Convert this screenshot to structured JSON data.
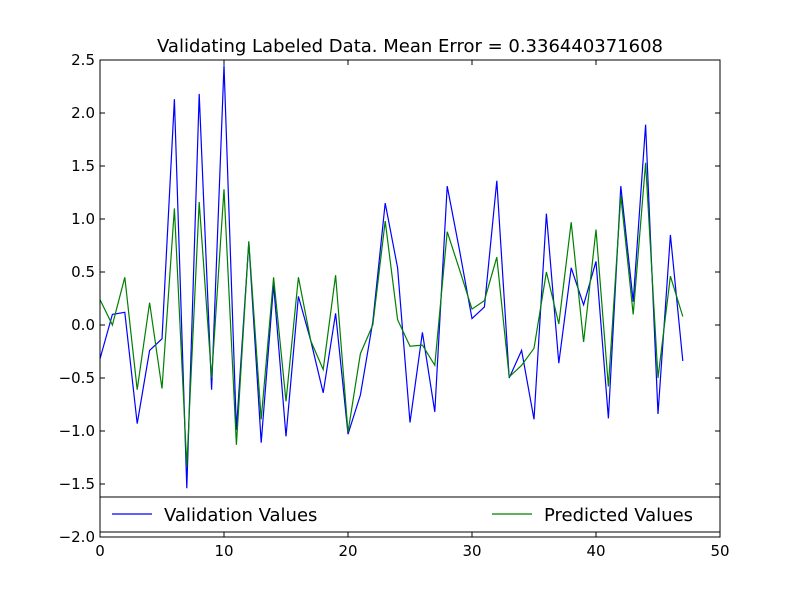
{
  "chart_data": {
    "type": "line",
    "title": "Validating Labeled Data. Mean Error = 0.336440371608",
    "xlabel": "",
    "ylabel": "",
    "xlim": [
      0,
      50
    ],
    "ylim": [
      -2.0,
      2.5
    ],
    "xticks": [
      0,
      10,
      20,
      30,
      40,
      50
    ],
    "xtick_labels": [
      "0",
      "10",
      "20",
      "30",
      "40",
      "50"
    ],
    "yticks": [
      -2.0,
      -1.5,
      -1.0,
      -0.5,
      0.0,
      0.5,
      1.0,
      1.5,
      2.0,
      2.5
    ],
    "ytick_labels": [
      "−2.0",
      "−1.5",
      "−1.0",
      "−0.5",
      "0.0",
      "0.5",
      "1.0",
      "1.5",
      "2.0",
      "2.5"
    ],
    "grid": false,
    "legend_position": "bottom, two columns",
    "series": [
      {
        "name": "Validation Values",
        "color": "#0000ff",
        "x": [
          0,
          1,
          2,
          3,
          4,
          5,
          6,
          7,
          8,
          9,
          10,
          11,
          12,
          13,
          14,
          15,
          16,
          17,
          18,
          19,
          20,
          21,
          22,
          23,
          24,
          25,
          26,
          27,
          28,
          29,
          30,
          31,
          32,
          33,
          34,
          35,
          36,
          37,
          38,
          39,
          40,
          41,
          42,
          43,
          44,
          45,
          46,
          47
        ],
        "values": [
          -0.32,
          0.1,
          0.12,
          -0.93,
          -0.24,
          -0.13,
          2.13,
          -1.54,
          2.18,
          -0.61,
          2.45,
          -0.99,
          0.78,
          -1.11,
          0.38,
          -1.05,
          0.27,
          -0.15,
          -0.64,
          0.11,
          -1.03,
          -0.66,
          0.03,
          1.15,
          0.54,
          -0.92,
          -0.07,
          -0.82,
          1.31,
          0.7,
          0.06,
          0.17,
          1.36,
          -0.5,
          -0.24,
          -0.89,
          1.05,
          -0.36,
          0.54,
          0.19,
          0.6,
          -0.88,
          1.31,
          0.22,
          1.89,
          -0.84,
          0.85,
          -0.34
        ]
      },
      {
        "name": "Predicted Values",
        "color": "#008000",
        "x": [
          0,
          1,
          2,
          3,
          4,
          5,
          6,
          7,
          8,
          9,
          10,
          11,
          12,
          13,
          14,
          15,
          16,
          17,
          18,
          19,
          20,
          21,
          22,
          23,
          24,
          25,
          26,
          27,
          28,
          29,
          30,
          31,
          32,
          33,
          34,
          35,
          36,
          37,
          38,
          39,
          40,
          41,
          42,
          43,
          44,
          45,
          46,
          47
        ],
        "values": [
          0.24,
          0.0,
          0.45,
          -0.61,
          0.21,
          -0.6,
          1.1,
          -1.33,
          1.16,
          -0.5,
          1.28,
          -1.13,
          0.79,
          -0.89,
          0.45,
          -0.72,
          0.45,
          -0.15,
          -0.42,
          0.47,
          -1.01,
          -0.27,
          0.0,
          0.98,
          0.05,
          -0.2,
          -0.19,
          -0.38,
          0.88,
          0.52,
          0.15,
          0.23,
          0.64,
          -0.49,
          -0.38,
          -0.22,
          0.5,
          0.01,
          0.97,
          -0.16,
          0.9,
          -0.58,
          1.22,
          0.1,
          1.53,
          -0.5,
          0.46,
          0.08
        ]
      }
    ]
  }
}
